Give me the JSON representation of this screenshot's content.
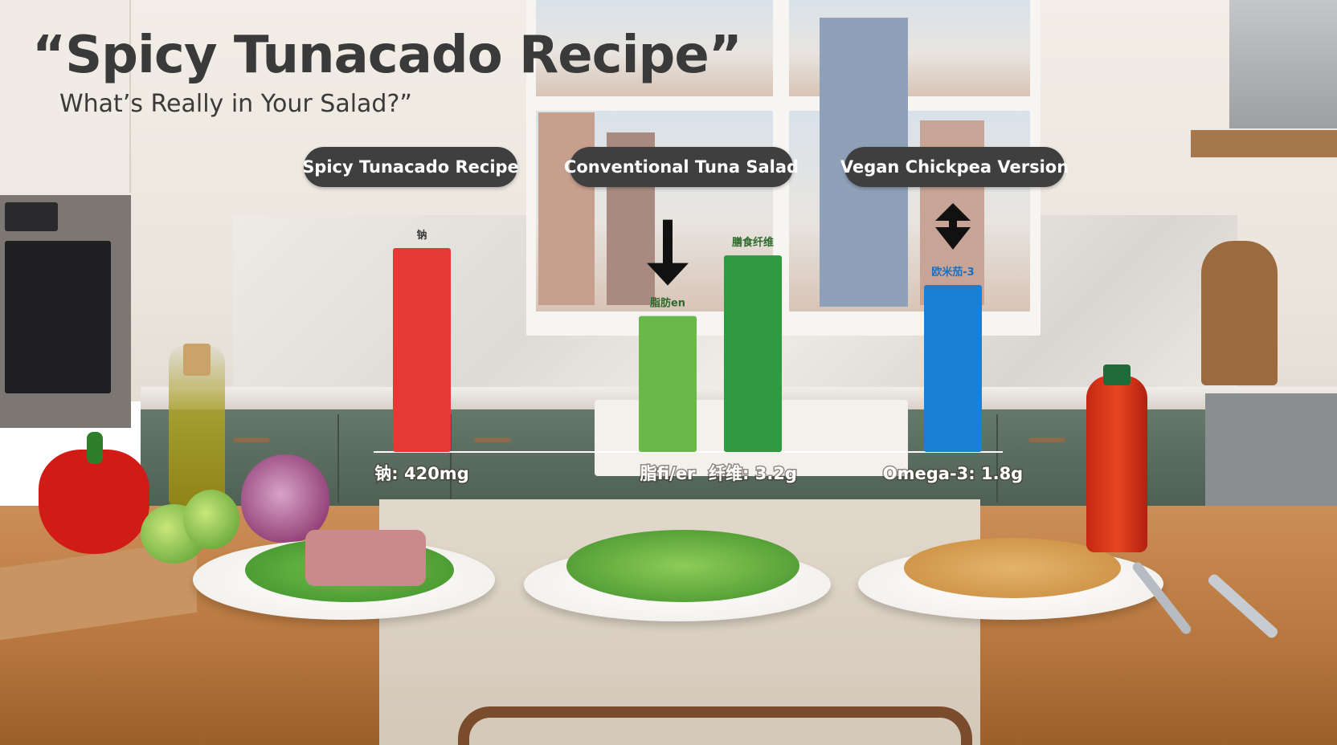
{
  "header": {
    "title": "“Spicy Tunacado Recipe”",
    "subtitle": "What’s Really in Your Salad?”"
  },
  "groups": [
    {
      "label": "Spicy Tunacado Recipe"
    },
    {
      "label": "Conventional Tuna Salad"
    },
    {
      "label": "Vegan Chickpea Version"
    }
  ],
  "chart_data": {
    "type": "bar",
    "title": "",
    "xlabel": "",
    "ylabel": "",
    "grid": false,
    "legend": "none",
    "bars": [
      {
        "top_label": "钠",
        "axis_label": "钠: 420mg",
        "value": 420,
        "color": "#e53935",
        "group": 0
      },
      {
        "top_label": "脂肪en",
        "axis_label": "脂fi/er",
        "value": 280,
        "color": "#6ab84a",
        "group": 1,
        "arrow": "down"
      },
      {
        "top_label": "膳食纤维",
        "axis_label": "纤维: 3.2g",
        "value": 405,
        "color": "#2f9a3f",
        "group": 1
      },
      {
        "top_label": "欧米茄-3",
        "axis_label": "Omega-3: 1.8g",
        "value": 344,
        "color": "#1c7fd6",
        "group": 2,
        "arrow": "up-down"
      }
    ],
    "ylim": [
      0,
      420
    ]
  },
  "colors": {
    "pill_bg": "#3f3f3f",
    "title_text": "#3a3a3a"
  }
}
